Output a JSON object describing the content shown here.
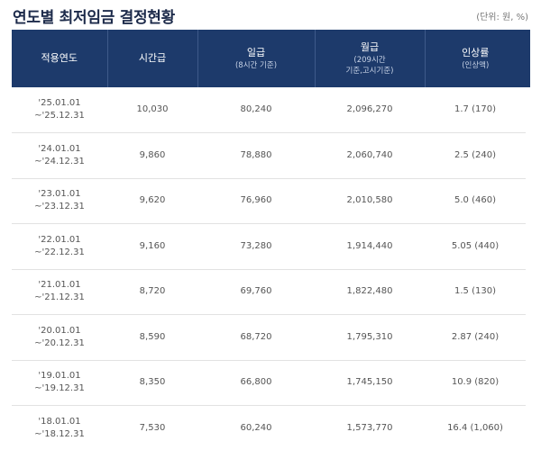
{
  "title": "연도별 최저임금 결정현황",
  "unit": "(단위: 원, %)",
  "columns": [
    {
      "label": "적용연도",
      "sub": ""
    },
    {
      "label": "시간급",
      "sub": ""
    },
    {
      "label": "일급",
      "sub": "(8시간 기준)"
    },
    {
      "label": "월급",
      "sub_line1": "(209시간",
      "sub_line2": "기준,고시기준)"
    },
    {
      "label": "인상률",
      "sub": "(인상액)"
    }
  ],
  "rows": [
    {
      "period_start": "'25.01.01",
      "period_end": "~'25.12.31",
      "hourly": "10,030",
      "daily": "80,240",
      "monthly": "2,096,270",
      "rate": "1.7 (170)"
    },
    {
      "period_start": "'24.01.01",
      "period_end": "~'24.12.31",
      "hourly": "9,860",
      "daily": "78,880",
      "monthly": "2,060,740",
      "rate": "2.5 (240)"
    },
    {
      "period_start": "'23.01.01",
      "period_end": "~'23.12.31",
      "hourly": "9,620",
      "daily": "76,960",
      "monthly": "2,010,580",
      "rate": "5.0 (460)"
    },
    {
      "period_start": "'22.01.01",
      "period_end": "~'22.12.31",
      "hourly": "9,160",
      "daily": "73,280",
      "monthly": "1,914,440",
      "rate": "5.05 (440)"
    },
    {
      "period_start": "'21.01.01",
      "period_end": "~'21.12.31",
      "hourly": "8,720",
      "daily": "69,760",
      "monthly": "1,822,480",
      "rate": "1.5 (130)"
    },
    {
      "period_start": "'20.01.01",
      "period_end": "~'20.12.31",
      "hourly": "8,590",
      "daily": "68,720",
      "monthly": "1,795,310",
      "rate": "2.87 (240)"
    },
    {
      "period_start": "'19.01.01",
      "period_end": "~'19.12.31",
      "hourly": "8,350",
      "daily": "66,800",
      "monthly": "1,745,150",
      "rate": "10.9 (820)"
    },
    {
      "period_start": "'18.01.01",
      "period_end": "~'18.12.31",
      "hourly": "7,530",
      "daily": "60,240",
      "monthly": "1,573,770",
      "rate": "16.4 (1,060)"
    }
  ],
  "colors": {
    "header_bg": "#1d3a6b",
    "title_text": "#1c2a4a",
    "row_border": "#e2e2e2"
  }
}
